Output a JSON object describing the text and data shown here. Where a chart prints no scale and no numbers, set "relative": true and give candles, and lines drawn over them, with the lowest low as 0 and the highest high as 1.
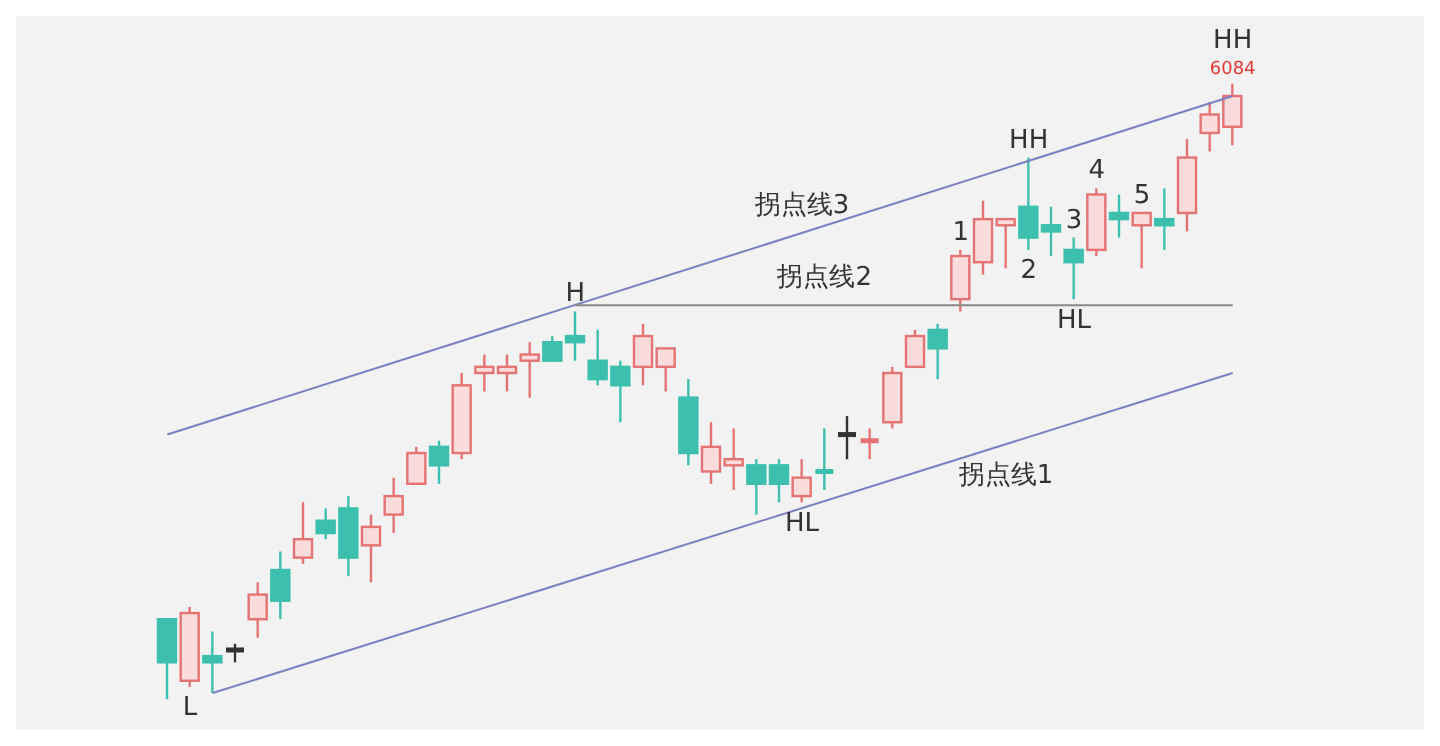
{
  "chart_data": {
    "type": "candlestick",
    "relative": true,
    "tick_labels": false,
    "categories": [
      null,
      null,
      null,
      null,
      null,
      null,
      null,
      null,
      null,
      null,
      null,
      null,
      null,
      null,
      null,
      null,
      null,
      null,
      null,
      null,
      null,
      null,
      null,
      null,
      null,
      null,
      null,
      null,
      null,
      null,
      null,
      null,
      null,
      null,
      null,
      null,
      null,
      null,
      null,
      null,
      null,
      null,
      null,
      null,
      null,
      null,
      null,
      null
    ],
    "ohlc": [
      [
        0.13,
        0.13,
        0,
        0.06
      ],
      [
        0.03,
        0.15,
        0.02,
        0.14
      ],
      [
        0.07,
        0.11,
        0.01,
        0.06
      ],
      [
        0.08,
        0.09,
        0.06,
        0.08
      ],
      [
        0.13,
        0.19,
        0.1,
        0.17
      ],
      [
        0.21,
        0.24,
        0.13,
        0.16
      ],
      [
        0.23,
        0.32,
        0.22,
        0.26
      ],
      [
        0.29,
        0.31,
        0.26,
        0.27
      ],
      [
        0.31,
        0.33,
        0.2,
        0.23
      ],
      [
        0.25,
        0.3,
        0.19,
        0.28
      ],
      [
        0.3,
        0.36,
        0.27,
        0.33
      ],
      [
        0.35,
        0.41,
        0.35,
        0.4
      ],
      [
        0.41,
        0.42,
        0.35,
        0.38
      ],
      [
        0.4,
        0.53,
        0.39,
        0.51
      ],
      [
        0.53,
        0.56,
        0.5,
        0.54
      ],
      [
        0.53,
        0.56,
        0.5,
        0.54
      ],
      [
        0.55,
        0.58,
        0.49,
        0.56
      ],
      [
        0.58,
        0.59,
        0.55,
        0.55
      ],
      [
        0.59,
        0.63,
        0.55,
        0.58
      ],
      [
        0.55,
        0.6,
        0.51,
        0.52
      ],
      [
        0.54,
        0.55,
        0.45,
        0.51
      ],
      [
        0.54,
        0.61,
        0.51,
        0.59
      ],
      [
        0.54,
        0.57,
        0.5,
        0.57
      ],
      [
        0.49,
        0.52,
        0.38,
        0.4
      ],
      [
        0.37,
        0.45,
        0.35,
        0.41
      ],
      [
        0.38,
        0.44,
        0.34,
        0.39
      ],
      [
        0.38,
        0.39,
        0.3,
        0.35
      ],
      [
        0.38,
        0.39,
        0.32,
        0.35
      ],
      [
        0.33,
        0.39,
        0.32,
        0.36
      ],
      [
        0.37,
        0.44,
        0.34,
        0.37
      ],
      [
        0.43,
        0.46,
        0.39,
        0.43
      ],
      [
        0.42,
        0.44,
        0.39,
        0.42
      ],
      [
        0.45,
        0.54,
        0.44,
        0.53
      ],
      [
        0.54,
        0.6,
        0.54,
        0.59
      ],
      [
        0.6,
        0.61,
        0.52,
        0.57
      ],
      [
        0.65,
        0.73,
        0.63,
        0.72
      ],
      [
        0.71,
        0.81,
        0.69,
        0.78
      ],
      [
        0.77,
        0.78,
        0.7,
        0.78
      ],
      [
        0.8,
        0.88,
        0.73,
        0.75
      ],
      [
        0.77,
        0.8,
        0.72,
        0.76
      ],
      [
        0.73,
        0.75,
        0.65,
        0.71
      ],
      [
        0.73,
        0.83,
        0.72,
        0.82
      ],
      [
        0.79,
        0.82,
        0.75,
        0.78
      ],
      [
        0.77,
        0.79,
        0.7,
        0.79
      ],
      [
        0.78,
        0.83,
        0.73,
        0.77
      ],
      [
        0.79,
        0.91,
        0.76,
        0.88
      ],
      [
        0.92,
        0.97,
        0.89,
        0.95
      ],
      [
        0.93,
        1,
        0.9,
        0.98
      ]
    ],
    "colors": [
      "#3dbfad",
      "#e57373",
      "#3dbfad",
      "#333333",
      "#e57373",
      "#3dbfad",
      "#e57373",
      "#3dbfad",
      "#3dbfad",
      "#e57373",
      "#e57373",
      "#e57373",
      "#3dbfad",
      "#e57373",
      "#e57373",
      "#e57373",
      "#e57373",
      "#3dbfad",
      "#3dbfad",
      "#3dbfad",
      "#3dbfad",
      "#e57373",
      "#e57373",
      "#3dbfad",
      "#e57373",
      "#e57373",
      "#3dbfad",
      "#3dbfad",
      "#e57373",
      "#3dbfad",
      "#333333",
      "#e57373",
      "#e57373",
      "#e57373",
      "#3dbfad",
      "#e57373",
      "#e57373",
      "#e57373",
      "#3dbfad",
      "#3dbfad",
      "#3dbfad",
      "#e57373",
      "#3dbfad",
      "#e57373",
      "#3dbfad",
      "#e57373",
      "#e57373",
      "#e57373"
    ],
    "series": [
      {
        "type": "line",
        "name": "拐点线3",
        "color": "#7b7fc4",
        "values": [
          0.43,
          null,
          null,
          null,
          null,
          null,
          null,
          null,
          null,
          null,
          null,
          null,
          null,
          null,
          null,
          null,
          null,
          null,
          null,
          null,
          null,
          null,
          null,
          null,
          null,
          null,
          null,
          null,
          null,
          null,
          null,
          null,
          null,
          null,
          null,
          null,
          null,
          null,
          null,
          null,
          null,
          null,
          null,
          null,
          null,
          null,
          null,
          0.98
        ]
      },
      {
        "type": "line",
        "name": "拐点线2",
        "color": "#888888",
        "values": [
          null,
          null,
          null,
          null,
          null,
          null,
          null,
          null,
          null,
          null,
          null,
          null,
          null,
          null,
          null,
          null,
          null,
          null,
          0.64,
          null,
          null,
          null,
          null,
          null,
          null,
          null,
          null,
          null,
          null,
          null,
          null,
          null,
          null,
          null,
          null,
          null,
          null,
          null,
          null,
          null,
          null,
          null,
          null,
          null,
          null,
          null,
          null,
          0.64
        ]
      },
      {
        "type": "line",
        "name": "拐点线1",
        "color": "#7b7fc4",
        "values": [
          null,
          null,
          0.01,
          null,
          null,
          null,
          null,
          null,
          null,
          null,
          null,
          null,
          null,
          null,
          null,
          null,
          null,
          null,
          null,
          null,
          null,
          null,
          null,
          null,
          null,
          null,
          null,
          null,
          null,
          null,
          null,
          null,
          null,
          null,
          null,
          null,
          null,
          null,
          null,
          null,
          null,
          null,
          null,
          null,
          null,
          null,
          null,
          0.53
        ]
      }
    ],
    "annotations": [
      "L",
      "H",
      "HL",
      "1",
      "HH",
      "2",
      "3",
      "HL",
      "4",
      "5",
      "6084",
      "HH"
    ]
  }
}
